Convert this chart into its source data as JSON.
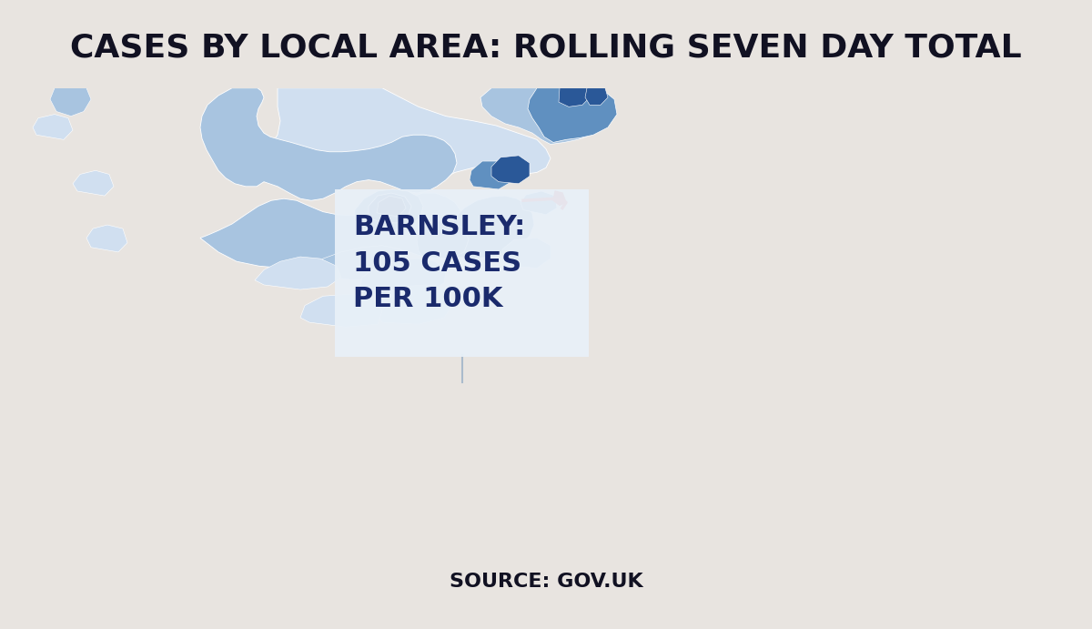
{
  "title": "CASES BY LOCAL AREA: ROLLING SEVEN DAY TOTAL",
  "source": "SOURCE: GOV.UK",
  "tooltip_title": "BARNSLEY:",
  "tooltip_line2": "105 CASES",
  "tooltip_line3": "PER 100K",
  "title_color": "#111122",
  "title_fontsize": 26,
  "source_fontsize": 16,
  "tooltip_fontsize": 22,
  "tooltip_bg": "#e8f0f8",
  "tooltip_text_color": "#1a2a6c",
  "bg_color": "#e8e4e0",
  "map_red": "#7a1010",
  "map_blue_vlight": "#d0dff0",
  "map_blue_light": "#a8c4e0",
  "map_blue_mid": "#6090c0",
  "map_blue_dark": "#2a5898",
  "map_blue_vdark": "#1a3870",
  "connector_color": "#ccddee"
}
